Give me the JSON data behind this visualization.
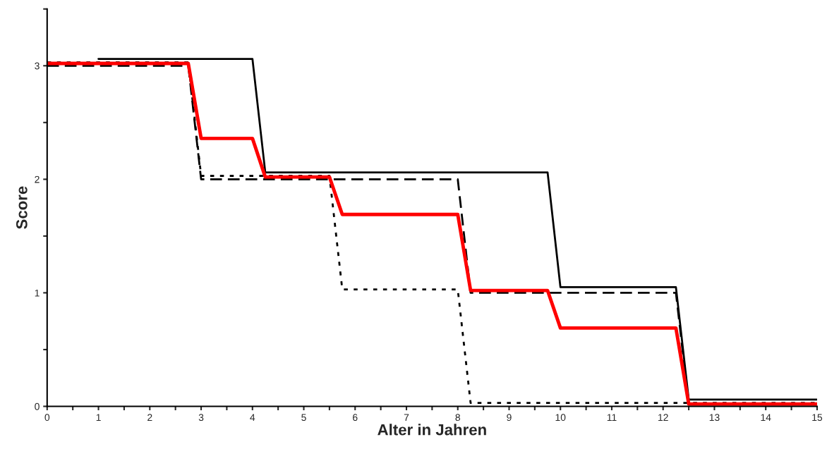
{
  "chart_data": {
    "type": "line",
    "xlabel": "Alter in Jahren",
    "ylabel": "Score",
    "xlim": [
      0,
      15
    ],
    "ylim": [
      0,
      3.5
    ],
    "xticks": [
      0,
      {
        "value": 0.5,
        "label": null
      },
      1,
      {
        "value": 1.5,
        "label": null
      },
      2,
      {
        "value": 2.5,
        "label": null
      },
      3,
      {
        "value": 3.5,
        "label": null
      },
      4,
      {
        "value": 4.5,
        "label": null
      },
      5,
      {
        "value": 5.5,
        "label": null
      },
      6,
      {
        "value": 6.5,
        "label": null
      },
      7,
      {
        "value": 7.5,
        "label": null
      },
      8,
      {
        "value": 8.5,
        "label": null
      },
      9,
      {
        "value": 9.5,
        "label": null
      },
      10,
      {
        "value": 10.5,
        "label": null
      },
      11,
      {
        "value": 11.5,
        "label": null
      },
      12,
      {
        "value": 12.5,
        "label": null
      },
      13,
      {
        "value": 13.5,
        "label": null
      },
      14,
      {
        "value": 14.5,
        "label": null
      },
      15
    ],
    "yticks": [
      0,
      {
        "value": 0.5,
        "label": null
      },
      1,
      {
        "value": 1.5,
        "label": null
      },
      2,
      {
        "value": 2.5,
        "label": null
      },
      3,
      {
        "value": 3.5,
        "label": null
      }
    ],
    "grid": false,
    "legend": false,
    "series": [
      {
        "color": "#000000",
        "line_style": "solid",
        "x": [
          1,
          4,
          4.25,
          9.75,
          10,
          12.25,
          12.5,
          15
        ],
        "values": [
          3.06,
          3.06,
          2.06,
          2.06,
          1.05,
          1.05,
          0.06,
          0.06
        ]
      },
      {
        "color": "#000000",
        "line_style": "dashed",
        "x": [
          0,
          2.75,
          3,
          8,
          8.25,
          12.25,
          12.5,
          15
        ],
        "values": [
          3.0,
          3.0,
          2.0,
          2.0,
          1.0,
          1.0,
          0.02,
          0.02
        ]
      },
      {
        "color": "#000000",
        "line_style": "dotted",
        "x": [
          0,
          2.75,
          3,
          5.5,
          5.75,
          8,
          8.25,
          15
        ],
        "values": [
          3.03,
          3.03,
          2.03,
          2.03,
          1.03,
          1.03,
          0.03,
          0.03
        ]
      },
      {
        "color": "#ff0000",
        "line_style": "solid",
        "x": [
          0,
          2.75,
          3,
          4,
          4.25,
          5.5,
          5.75,
          8,
          8.25,
          9.75,
          10,
          12.25,
          12.5,
          15
        ],
        "values": [
          3.02,
          3.02,
          2.36,
          2.36,
          2.02,
          2.02,
          1.69,
          1.69,
          1.02,
          1.02,
          0.69,
          0.69,
          0.02,
          0.02
        ]
      }
    ]
  }
}
